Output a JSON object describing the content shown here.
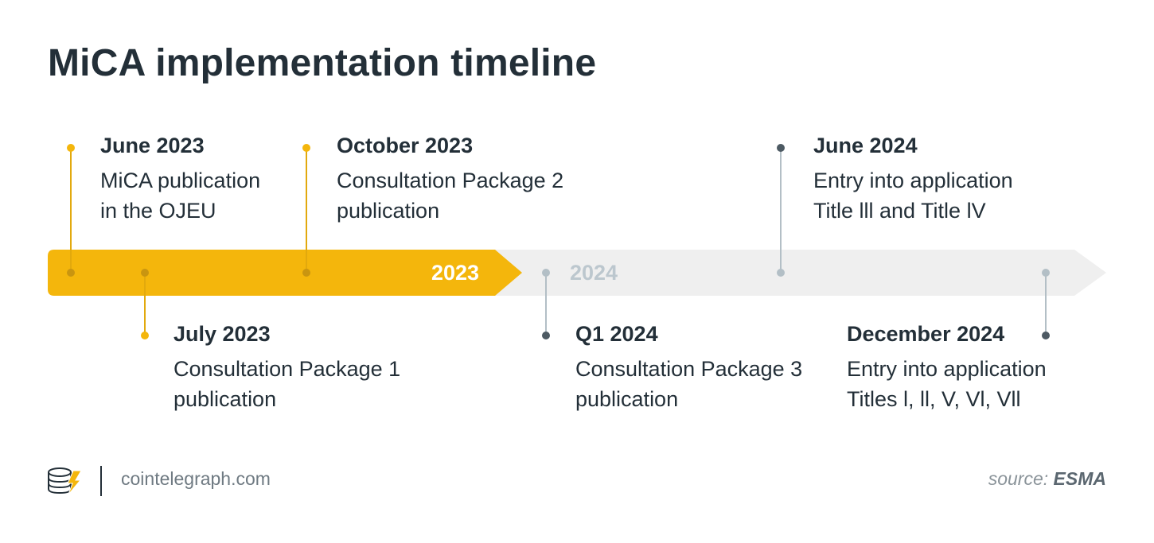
{
  "title": "MiCA implementation timeline",
  "timeline": {
    "years": [
      "2023",
      "2024"
    ],
    "events": [
      {
        "date": "June 2023",
        "desc_line1": "MiCA publication",
        "desc_line2": "in the OJEU"
      },
      {
        "date": "July 2023",
        "desc_line1": "Consultation Package 1",
        "desc_line2": "publication"
      },
      {
        "date": "October 2023",
        "desc_line1": "Consultation Package 2",
        "desc_line2": "publication"
      },
      {
        "date": "Q1 2024",
        "desc_line1": "Consultation Package 3",
        "desc_line2": "publication"
      },
      {
        "date": "June 2024",
        "desc_line1": "Entry into application",
        "desc_line2": "Title lll and Title lV"
      },
      {
        "date": "December 2024",
        "desc_line1": "Entry into application",
        "desc_line2": "Titles l, ll, V, Vl, Vll"
      }
    ]
  },
  "colors": {
    "accent_2023": "#f4b60c",
    "track_2024": "#eeeeee",
    "marker_2023": "#f4b60c",
    "marker_2024": "#8fa0aa",
    "text_dark": "#232f38"
  },
  "footer": {
    "logo_icon": "cointelegraph-logo-icon",
    "site": "cointelegraph.com",
    "source_label": "source:",
    "source_name": "ESMA"
  }
}
